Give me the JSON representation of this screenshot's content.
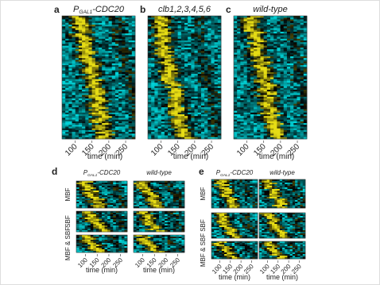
{
  "top_panels": [
    {
      "letter": "a",
      "title": [
        "P",
        "GAL1",
        "-CDC20"
      ],
      "xticks": [
        "100",
        "150",
        "200",
        "250"
      ],
      "xlabel": "time (min)"
    },
    {
      "letter": "b",
      "title": [
        "clb1,2,3,4,5,6"
      ],
      "xticks": [
        "100",
        "150",
        "200",
        "250"
      ],
      "xlabel": "time (min)"
    },
    {
      "letter": "c",
      "title": [
        "wild-type"
      ],
      "xticks": [
        "100",
        "150",
        "200",
        "250"
      ],
      "xlabel": "time (min)"
    }
  ],
  "bottom_panels": [
    {
      "letter": "d",
      "columns": [
        {
          "title": [
            "P",
            "GAL1",
            "-CDC20"
          ],
          "xticks": [
            "100",
            "150",
            "200",
            "250"
          ],
          "xlabel": "time (min)"
        },
        {
          "title": [
            "wild-type"
          ],
          "xticks": [
            "100",
            "150",
            "200",
            "250"
          ],
          "xlabel": "time (min)"
        }
      ],
      "row_labels": [
        "MBF",
        "SBF",
        "MBF & SBF"
      ]
    },
    {
      "letter": "e",
      "columns": [
        {
          "title": [
            "P",
            "GAL1",
            "-CDC20"
          ],
          "xticks": [
            "100",
            "150",
            "200",
            "250"
          ],
          "xlabel": "time (min)"
        },
        {
          "title": [
            "wild-type"
          ],
          "xticks": [
            "100",
            "150",
            "200",
            "250"
          ],
          "xlabel": "time (min)"
        }
      ],
      "row_labels": [
        "MBF",
        "SBF",
        "MBF & SBF"
      ]
    }
  ]
}
